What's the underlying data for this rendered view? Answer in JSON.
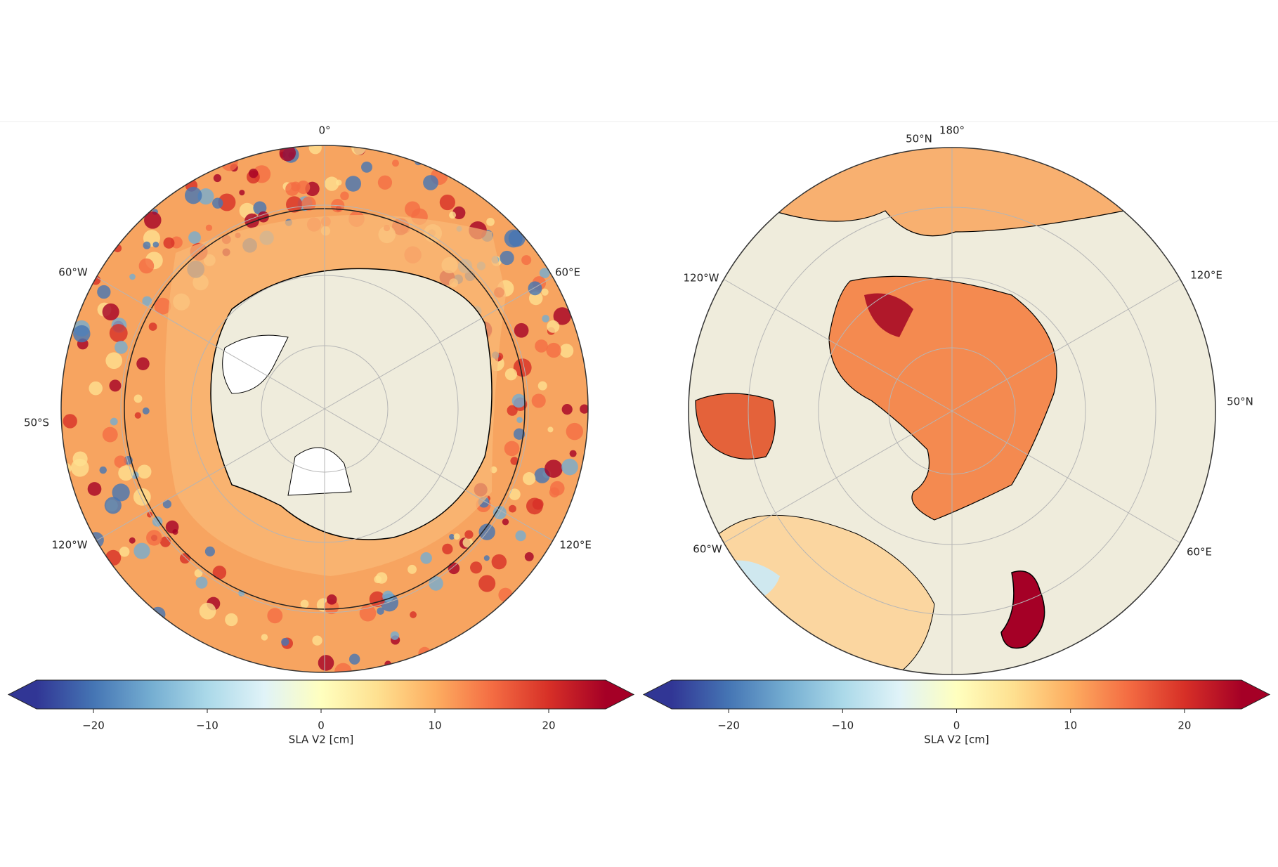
{
  "maps": [
    {
      "graticule_labels": [
        "0°",
        "60°W",
        "60°E",
        "50°S",
        "120°W",
        "120°E"
      ],
      "colorbar": {
        "label": "SLA V2 [cm]",
        "lim": [
          -25,
          25
        ],
        "ticks": [
          {
            "value": -20,
            "label": "−20"
          },
          {
            "value": -10,
            "label": "−10"
          },
          0,
          10,
          20
        ]
      }
    },
    {
      "graticule_labels": [
        "50°N",
        "180°",
        "120°W",
        "120°E",
        "50°N",
        "60°W",
        "60°E"
      ],
      "colorbar": {
        "label": "SLA V2 [cm]",
        "lim": [
          -25,
          25
        ],
        "ticks": [
          {
            "value": -20,
            "label": "−20"
          },
          {
            "value": -10,
            "label": "−10"
          },
          0,
          10,
          20
        ]
      }
    }
  ]
}
